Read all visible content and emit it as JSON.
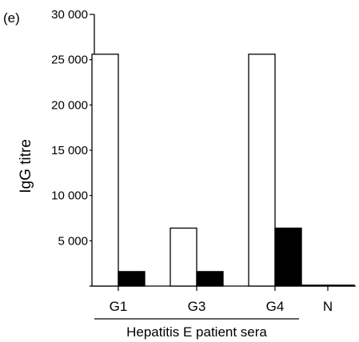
{
  "chart_data": {
    "type": "bar",
    "panel_label": "(e)",
    "ylabel": "IgG titre",
    "group_label": "Hepatitis E patient sera",
    "categories": [
      "G1",
      "G3",
      "G4",
      "N"
    ],
    "y_ticks": [
      "30 000",
      "25 000",
      "20 000",
      "15 000",
      "10 000",
      "5 000"
    ],
    "ylim": [
      0,
      30000
    ],
    "grid": false,
    "series": [
      {
        "values": [
          25600,
          6400,
          25600,
          100
        ],
        "color": "#ffffff"
      },
      {
        "values": [
          1600,
          1600,
          6400,
          100
        ],
        "color": "#000000"
      }
    ]
  }
}
